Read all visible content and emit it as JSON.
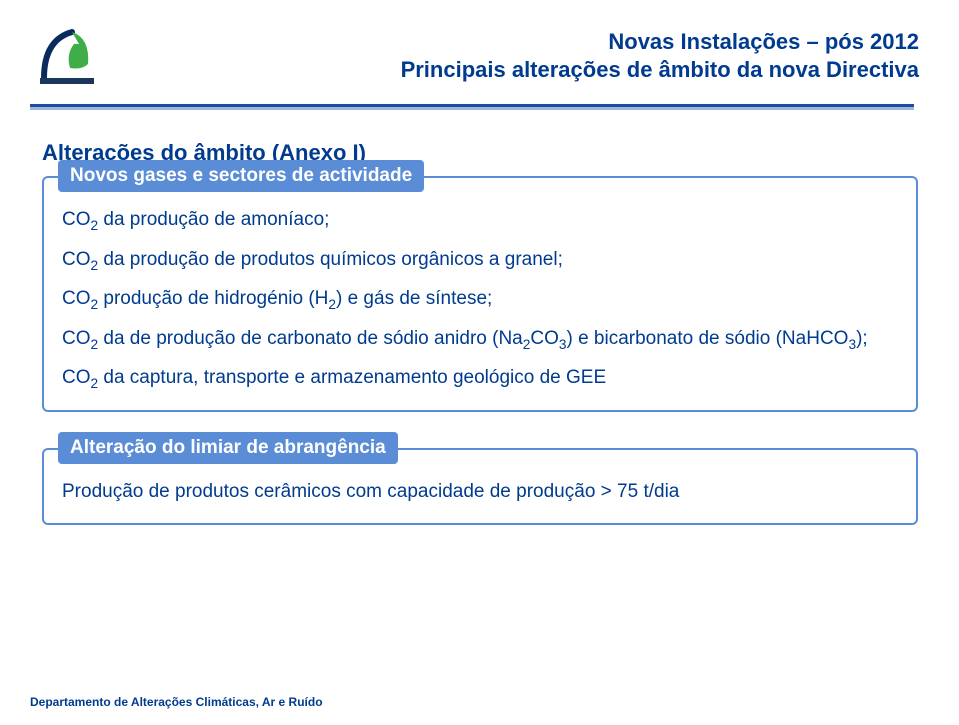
{
  "logo": {
    "stroke_navy": "#0a2a5e",
    "fill_green": "#3fae49",
    "base_color": "#1b365d"
  },
  "header": {
    "title_line1": "Novas Instalações – pós 2012",
    "title_line2": "Principais alterações de âmbito da nova Directiva",
    "text_color": "#003b8f"
  },
  "rule": {
    "outer_color": "#99b7e0",
    "inner_color": "#1f4ea0"
  },
  "heading": "Alterações do âmbito (Anexo I)",
  "group1": {
    "legend": "Novos gases e sectores de actividade",
    "items": [
      {
        "html": "CO<sub>2</sub> da produção de amoníaco;"
      },
      {
        "html": "CO<sub>2</sub> da produção de produtos químicos orgânicos a granel;"
      },
      {
        "html": "CO<sub>2</sub> produção de hidrogénio (H<sub>2</sub>) e gás de síntese;"
      },
      {
        "html": "CO<sub>2</sub> da de produção de carbonato de sódio anidro (Na<sub>2</sub>CO<sub>3</sub>) e bicarbonato de sódio (NaHCO<sub>3</sub>);"
      },
      {
        "html": "CO<sub>2</sub> da captura, transporte e armazenamento geológico de GEE"
      }
    ]
  },
  "group2": {
    "legend": "Alteração do limiar de abrangência",
    "items": [
      {
        "html": "Produção de produtos cerâmicos com capacidade de produção > 75 t/dia"
      }
    ]
  },
  "footer": "Departamento de Alterações Climáticas, Ar e Ruído",
  "styles": {
    "legend_bg": "#5a8dd6",
    "legend_text": "#ffffff",
    "border_color": "#5a8dd6",
    "body_text_color": "#003b8f"
  }
}
